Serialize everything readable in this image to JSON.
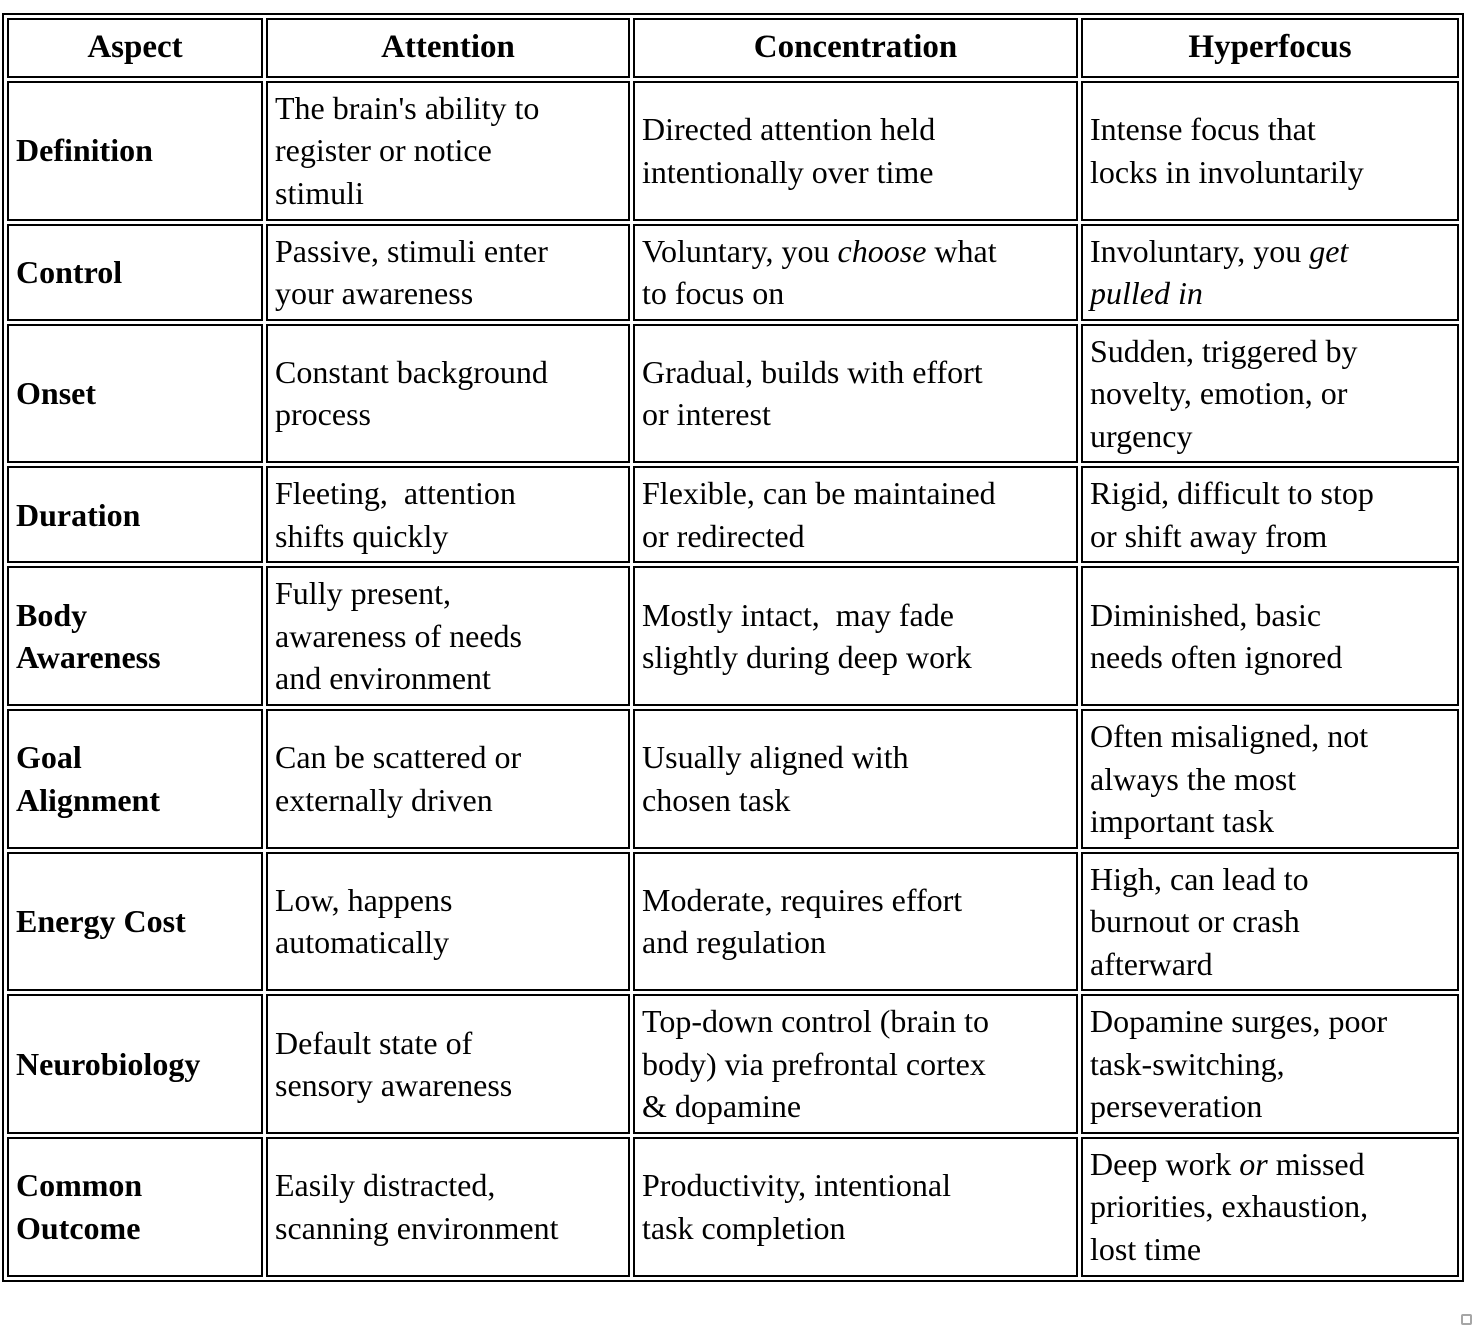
{
  "table": {
    "header": {
      "aspect": "Aspect",
      "attention": "Attention",
      "concentration": "Concentration",
      "hyperfocus": "Hyperfocus"
    },
    "rows": [
      {
        "aspect": "Definition",
        "attention": [
          {
            "t": "The brain's ability to\nregister or notice\nstimuli"
          }
        ],
        "concentration": [
          {
            "t": "Directed attention held\nintentionally over time"
          }
        ],
        "hyperfocus": [
          {
            "t": "Intense focus that\nlocks in involuntarily"
          }
        ]
      },
      {
        "aspect": "Control",
        "attention": [
          {
            "t": "Passive, stimuli enter\nyour awareness"
          }
        ],
        "concentration": [
          {
            "t": "Voluntary, you "
          },
          {
            "t": "choose",
            "i": true
          },
          {
            "t": " what\nto focus on"
          }
        ],
        "hyperfocus": [
          {
            "t": "Involuntary, you "
          },
          {
            "t": "get\npulled in",
            "i": true
          }
        ]
      },
      {
        "aspect": "Onset",
        "attention": [
          {
            "t": "Constant background\nprocess"
          }
        ],
        "concentration": [
          {
            "t": "Gradual, builds with effort\nor interest"
          }
        ],
        "hyperfocus": [
          {
            "t": "Sudden, triggered by\nnovelty, emotion, or\nurgency"
          }
        ]
      },
      {
        "aspect": "Duration",
        "attention": [
          {
            "t": "Fleeting,  attention\nshifts quickly"
          }
        ],
        "concentration": [
          {
            "t": "Flexible, can be maintained\nor redirected"
          }
        ],
        "hyperfocus": [
          {
            "t": "Rigid, difficult to stop\nor shift away from"
          }
        ]
      },
      {
        "aspect": "Body\nAwareness",
        "attention": [
          {
            "t": "Fully present,\nawareness of needs\nand environment"
          }
        ],
        "concentration": [
          {
            "t": "Mostly intact,  may fade\nslightly during deep work"
          }
        ],
        "hyperfocus": [
          {
            "t": "Diminished, basic\nneeds often ignored"
          }
        ]
      },
      {
        "aspect": "Goal\nAlignment",
        "attention": [
          {
            "t": "Can be scattered or\nexternally driven"
          }
        ],
        "concentration": [
          {
            "t": "Usually aligned with\nchosen task"
          }
        ],
        "hyperfocus": [
          {
            "t": "Often misaligned, not\nalways the most\nimportant task"
          }
        ]
      },
      {
        "aspect": "Energy Cost",
        "attention": [
          {
            "t": "Low, happens\nautomatically"
          }
        ],
        "concentration": [
          {
            "t": "Moderate, requires effort\nand regulation"
          }
        ],
        "hyperfocus": [
          {
            "t": "High, can lead to\nburnout or crash\nafterward"
          }
        ]
      },
      {
        "aspect": "Neurobiology",
        "attention": [
          {
            "t": "Default state of\nsensory awareness"
          }
        ],
        "concentration": [
          {
            "t": "Top-down control (brain to\nbody) via prefrontal cortex\n& dopamine"
          }
        ],
        "hyperfocus": [
          {
            "t": "Dopamine surges, poor\ntask-switching,\nperseveration"
          }
        ]
      },
      {
        "aspect": "Common\nOutcome",
        "attention": [
          {
            "t": "Easily distracted,\nscanning environment"
          }
        ],
        "concentration": [
          {
            "t": "Productivity, intentional\ntask completion"
          }
        ],
        "hyperfocus": [
          {
            "t": "Deep work "
          },
          {
            "t": "or",
            "i": true
          },
          {
            "t": " missed\npriorities, exhaustion,\nlost time"
          }
        ]
      }
    ]
  },
  "icons": {
    "resize_handle": "resize-handle-square"
  },
  "colors": {
    "border": "#000000",
    "text": "#000000",
    "background": "#ffffff",
    "resize_handle": "#a6a6a6"
  }
}
